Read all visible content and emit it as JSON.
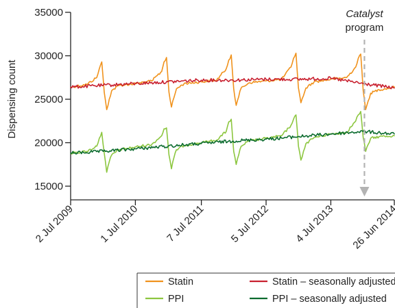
{
  "chart_data": {
    "type": "line",
    "title": "",
    "xlabel": "",
    "ylabel": "Dispensing count",
    "ylim": [
      15000,
      35000
    ],
    "y_ticks": [
      15000,
      20000,
      25000,
      30000,
      35000
    ],
    "y_tick_labels": [
      "15000",
      "20000",
      "25000",
      "30000",
      "35000"
    ],
    "x_range": [
      "2009-07-02",
      "2014-06-26"
    ],
    "x_ticks": [
      "2009-07-02",
      "2010-07-01",
      "2011-07-07",
      "2012-07-05",
      "2013-07-04",
      "2014-06-26"
    ],
    "x_tick_labels": [
      "2 Jul 2009",
      "1 Jul 2010",
      "7 Jul 2011",
      "5 Jul 2012",
      "4 Jul 2013",
      "26 Jun 2014"
    ],
    "grid": false,
    "legend_position": "bottom-right",
    "annotation": {
      "italic_text": "Catalyst",
      "text": "program",
      "date": "2014-01-09",
      "style": "dashed-arrow-down"
    },
    "series": [
      {
        "name": "Statin",
        "color": "#f0921c",
        "x": [
          "2009-07-02",
          "2009-10-01",
          "2009-11-26",
          "2009-12-10",
          "2009-12-24",
          "2010-01-07",
          "2010-01-21",
          "2010-02-04",
          "2010-02-18",
          "2010-04-01",
          "2010-07-01",
          "2010-10-01",
          "2010-11-26",
          "2010-12-09",
          "2010-12-23",
          "2011-01-06",
          "2011-01-20",
          "2011-02-03",
          "2011-02-17",
          "2011-04-01",
          "2011-07-07",
          "2011-10-01",
          "2011-11-24",
          "2011-12-08",
          "2011-12-22",
          "2012-01-05",
          "2012-01-19",
          "2012-02-02",
          "2012-02-16",
          "2012-04-01",
          "2012-07-05",
          "2012-10-01",
          "2012-11-22",
          "2012-12-06",
          "2012-12-20",
          "2013-01-03",
          "2013-01-17",
          "2013-01-31",
          "2013-02-14",
          "2013-04-01",
          "2013-07-04",
          "2013-10-01",
          "2013-11-21",
          "2013-12-05",
          "2013-12-19",
          "2014-01-02",
          "2014-01-16",
          "2014-01-30",
          "2014-02-13",
          "2014-04-01",
          "2014-06-26"
        ],
        "values": [
          26400,
          26700,
          27500,
          28500,
          29300,
          25800,
          23800,
          25000,
          26000,
          26600,
          26800,
          27100,
          28200,
          29300,
          29800,
          25800,
          24100,
          25200,
          26200,
          26800,
          27000,
          27200,
          28500,
          29500,
          30100,
          26200,
          24300,
          25300,
          26300,
          26900,
          27100,
          27300,
          28700,
          29700,
          30300,
          26300,
          24600,
          25400,
          26300,
          27000,
          27300,
          27500,
          28700,
          29700,
          30200,
          26000,
          23800,
          24800,
          25700,
          26100,
          26400
        ]
      },
      {
        "name": "Statin – seasonally adjusted",
        "color": "#c8202f",
        "x": [
          "2009-07-02",
          "2010-01-01",
          "2010-07-01",
          "2011-01-01",
          "2011-07-07",
          "2012-01-01",
          "2012-07-05",
          "2013-01-01",
          "2013-07-04",
          "2014-01-01",
          "2014-06-26"
        ],
        "values": [
          26400,
          26600,
          26800,
          27000,
          27200,
          27200,
          27300,
          27300,
          27400,
          26800,
          26300
        ]
      },
      {
        "name": "PPI",
        "color": "#8cc63f",
        "x": [
          "2009-07-02",
          "2009-10-01",
          "2009-11-26",
          "2009-12-10",
          "2009-12-24",
          "2010-01-07",
          "2010-01-21",
          "2010-02-04",
          "2010-02-18",
          "2010-04-01",
          "2010-07-01",
          "2010-10-01",
          "2010-11-26",
          "2010-12-09",
          "2010-12-23",
          "2011-01-06",
          "2011-01-20",
          "2011-02-03",
          "2011-02-17",
          "2011-04-01",
          "2011-07-07",
          "2011-10-01",
          "2011-11-24",
          "2011-12-08",
          "2011-12-22",
          "2012-01-05",
          "2012-01-19",
          "2012-02-02",
          "2012-02-16",
          "2012-04-01",
          "2012-07-05",
          "2012-10-01",
          "2012-11-22",
          "2012-12-06",
          "2012-12-20",
          "2013-01-03",
          "2013-01-17",
          "2013-01-31",
          "2013-02-14",
          "2013-04-01",
          "2013-07-04",
          "2013-10-01",
          "2013-11-21",
          "2013-12-05",
          "2013-12-19",
          "2014-01-02",
          "2014-01-16",
          "2014-01-30",
          "2014-02-13",
          "2014-04-01",
          "2014-06-26"
        ],
        "values": [
          18800,
          19000,
          19600,
          20500,
          21200,
          18800,
          16600,
          17800,
          18600,
          19200,
          19500,
          19800,
          20800,
          21600,
          21700,
          18600,
          17000,
          18300,
          19200,
          19700,
          20000,
          20300,
          21300,
          22400,
          22700,
          19000,
          17500,
          18600,
          19600,
          20200,
          20500,
          20800,
          22000,
          22700,
          23200,
          19600,
          18000,
          19000,
          19900,
          20600,
          21000,
          21200,
          22500,
          23200,
          23600,
          20600,
          19000,
          19800,
          20500,
          20700,
          20800
        ]
      },
      {
        "name": "PPI – seasonally adjusted",
        "color": "#0b6b2e",
        "x": [
          "2009-07-02",
          "2010-01-01",
          "2010-07-01",
          "2011-01-01",
          "2011-07-07",
          "2012-01-01",
          "2012-07-05",
          "2013-01-01",
          "2013-07-04",
          "2014-01-01",
          "2014-06-26"
        ],
        "values": [
          18800,
          19000,
          19300,
          19600,
          19900,
          20200,
          20400,
          20700,
          21000,
          21300,
          21000
        ]
      }
    ]
  }
}
